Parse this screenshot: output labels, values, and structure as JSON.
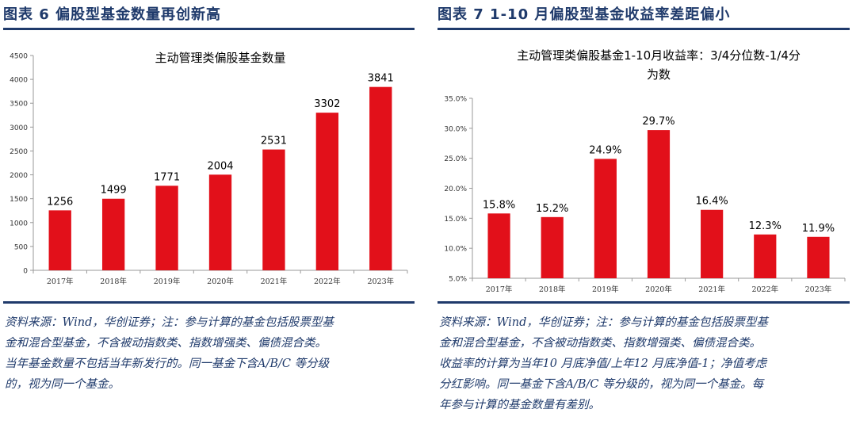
{
  "panels": [
    {
      "heading": "图表 6   偏股型基金数量再创新高",
      "footnote_lines": [
        "资料来源：Wind，华创证券；注：参与计算的基金包括股票型基",
        "金和混合型基金，不含被动指数类、指数增强类、偏债混合类。",
        "当年基金数量不包括当年新发行的。同一基金下含A/B/C 等分级",
        "的，视为同一个基金。"
      ]
    },
    {
      "heading": "图表 7   1-10 月偏股型基金收益率差距偏小",
      "footnote_lines": [
        "资料来源：Wind，华创证券；注：参与计算的基金包括股票型基",
        "金和混合型基金，不含被动指数类、指数增强类、偏债混合类。",
        "收益率的计算为当年10 月底净值/上年12 月底净值-1；净值考虑",
        "分红影响。同一基金下含A/B/C 等分级的，视为同一个基金。每",
        "年参与计算的基金数量有差别。"
      ]
    }
  ],
  "colors": {
    "bar": "#e2101a",
    "heading": "#1f3a6b",
    "axis": "#999999"
  },
  "chart_data": [
    {
      "type": "bar",
      "title": "主动管理类偏股基金数量",
      "categories": [
        "2017年",
        "2018年",
        "2019年",
        "2020年",
        "2021年",
        "2022年",
        "2023年"
      ],
      "values": [
        1256,
        1499,
        1771,
        2004,
        2531,
        3302,
        3841
      ],
      "data_labels": [
        "1256",
        "1499",
        "1771",
        "2004",
        "2531",
        "3302",
        "3841"
      ],
      "ylim": [
        0,
        4500
      ],
      "yticks": [
        0,
        500,
        1000,
        1500,
        2000,
        2500,
        3000,
        3500,
        4000,
        4500
      ],
      "ytick_labels": [
        "0",
        "500",
        "1000",
        "1500",
        "2000",
        "2500",
        "3000",
        "3500",
        "4000",
        "4500"
      ],
      "grid": false,
      "legend": "none"
    },
    {
      "type": "bar",
      "title": "主动管理类偏股基金1-10月收益率：3/4分位数-1/4分位数",
      "title_lines": [
        "主动管理类偏股基金1-10月收益率：3/4分位数-1/4分",
        "为数"
      ],
      "categories": [
        "2017年",
        "2018年",
        "2019年",
        "2020年",
        "2021年",
        "2022年",
        "2023年"
      ],
      "values": [
        15.8,
        15.2,
        24.9,
        29.7,
        16.4,
        12.3,
        11.9
      ],
      "data_labels": [
        "15.8%",
        "15.2%",
        "24.9%",
        "29.7%",
        "16.4%",
        "12.3%",
        "11.9%"
      ],
      "ylim": [
        5.0,
        35.0
      ],
      "yticks": [
        5,
        10,
        15,
        20,
        25,
        30,
        35
      ],
      "ytick_labels": [
        "5.0%",
        "10.0%",
        "15.0%",
        "20.0%",
        "25.0%",
        "30.0%",
        "35.0%"
      ],
      "grid": false,
      "legend": "none"
    }
  ]
}
